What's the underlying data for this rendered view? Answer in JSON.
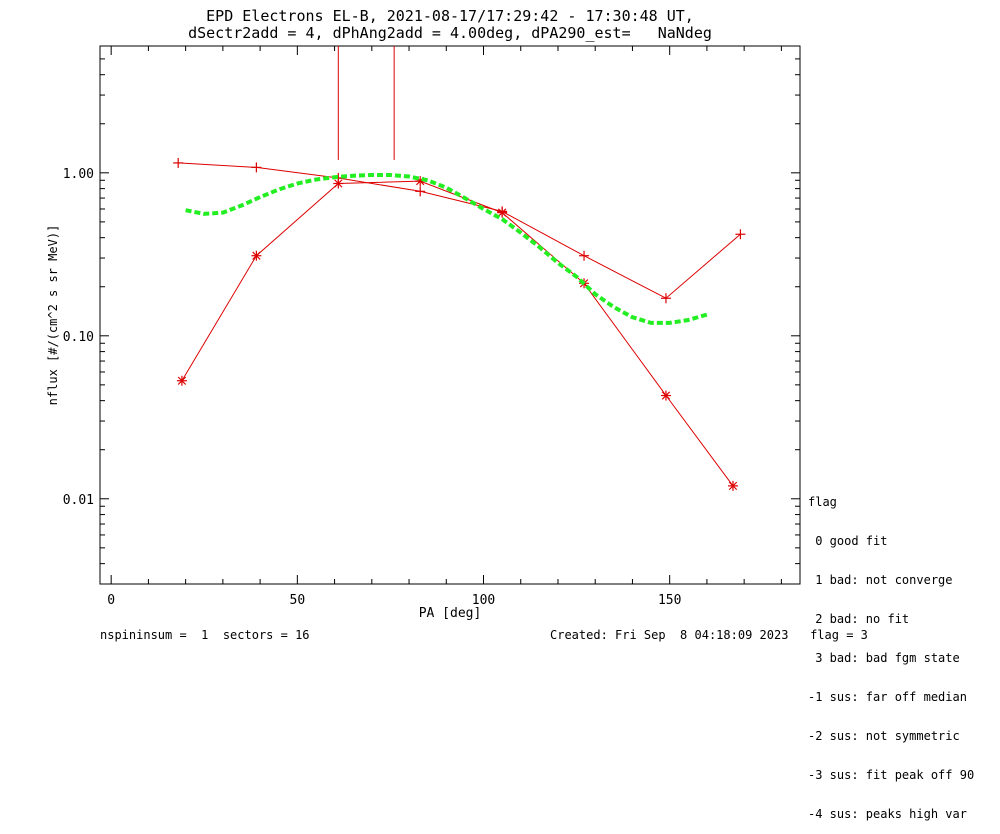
{
  "title_line1": "EPD Electrons EL-B, 2021-08-17/17:29:42 - 17:30:48 UT,",
  "title_line2": "dSectr2add = 4, dPhAng2add = 4.00deg, dPA290_est=   NaNdeg",
  "footer_left": "nspininsum =  1  sectors = 16",
  "footer_right": "Created: Fri Sep  8 04:18:09 2023   flag = 3",
  "legend": {
    "title": "flag",
    "items": [
      " 0 good fit",
      " 1 bad: not converge",
      " 2 bad: no fit",
      " 3 bad: bad fgm state",
      "-1 sus: far off median",
      "-2 sus: not symmetric",
      "-3 sus: fit peak off 90",
      "-4 sus: peaks high var"
    ]
  },
  "colors": {
    "data": "#dd0000",
    "fit": "#22ee22",
    "axis": "#000000"
  },
  "chart_data": {
    "type": "line",
    "xlabel": "PA [deg]",
    "ylabel": "nflux [#/(cm^2 s sr MeV)]",
    "xlim": [
      -3,
      185
    ],
    "ylim": [
      0.003,
      6.0
    ],
    "yscale": "log",
    "xticks": [
      0,
      50,
      100,
      150
    ],
    "xtick_labels": [
      "0",
      "50",
      "100",
      "150"
    ],
    "yticks": [
      0.01,
      0.1,
      1.0
    ],
    "ytick_labels": [
      "0.01",
      "0.10",
      "1.00"
    ],
    "series": [
      {
        "marker": "plus",
        "x": [
          18,
          39,
          61,
          83,
          105,
          127,
          149,
          169
        ],
        "y": [
          1.15,
          1.08,
          0.93,
          0.77,
          0.58,
          0.31,
          0.17,
          0.42
        ],
        "errorbars": [
          {
            "x": 61,
            "y_low": 1.2,
            "y_high": 6.0
          },
          {
            "x": 76,
            "y_low": 1.2,
            "y_high": 6.0
          }
        ]
      },
      {
        "marker": "asterisk",
        "x": [
          19,
          39,
          61,
          83,
          105,
          127,
          149,
          167
        ],
        "y": [
          0.053,
          0.31,
          0.86,
          0.89,
          0.57,
          0.21,
          0.043,
          0.012
        ]
      },
      {
        "style": "dashed",
        "x": [
          20,
          25,
          30,
          35,
          40,
          45,
          50,
          55,
          60,
          65,
          70,
          75,
          80,
          85,
          90,
          95,
          100,
          105,
          110,
          115,
          120,
          125,
          130,
          135,
          140,
          145,
          150,
          155,
          160
        ],
        "y": [
          0.59,
          0.56,
          0.57,
          0.63,
          0.71,
          0.79,
          0.86,
          0.91,
          0.94,
          0.96,
          0.97,
          0.97,
          0.95,
          0.9,
          0.81,
          0.7,
          0.6,
          0.52,
          0.43,
          0.35,
          0.28,
          0.23,
          0.18,
          0.15,
          0.13,
          0.12,
          0.12,
          0.125,
          0.135
        ]
      }
    ]
  }
}
